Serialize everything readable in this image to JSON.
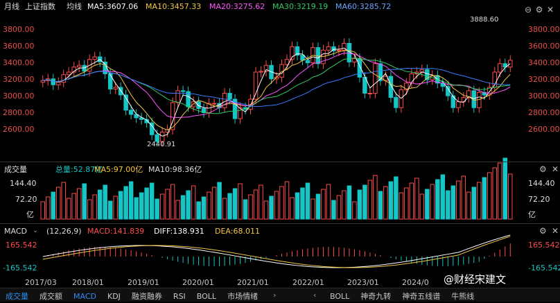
{
  "header": {
    "period": "月线",
    "index_name": "上证指数",
    "ma_toggle": "均线",
    "ma5": "MA5:3607.06",
    "ma10": "MA10:3457.33",
    "ma20": "MA20:3275.62",
    "ma30": "MA30:3219.19",
    "ma60": "MA60:3285.72"
  },
  "colors": {
    "up": "#ff4d4d",
    "down": "#16c5c5",
    "ma5": "#ffffff",
    "ma10": "#f5c842",
    "ma20": "#ff55ff",
    "ma30": "#33cc66",
    "ma60": "#3a7dff"
  },
  "price_axis": {
    "left": [
      "3800.00",
      "3600.00",
      "3400.00",
      "3200.00",
      "3000.00",
      "2800.00",
      "2600.00"
    ],
    "right": [
      "3800.00",
      "3600.00",
      "3400.00",
      "3200.00",
      "3000.00",
      "2800.00",
      "2600.00"
    ]
  },
  "annotations": {
    "high": "3888.60",
    "low": "2440.91"
  },
  "volume": {
    "title": "成交量",
    "total": "总量:52.87亿",
    "ma5": "MA5:97.00亿",
    "ma10": "MA10:98.36亿",
    "axis": [
      "144.40",
      "72.20",
      "亿"
    ],
    "axis_right": [
      "144.40",
      "72.20",
      "亿"
    ]
  },
  "macd": {
    "title": "MACD",
    "params": "(12,26,9)",
    "macd": "MACD:141.839",
    "diff": "DIFF:138.931",
    "dea": "DEA:68.011",
    "axis": [
      "165.542",
      "-165.542"
    ],
    "axis_right": [
      "165.542",
      "-165.542"
    ]
  },
  "x_axis": [
    "2017/03",
    "2018/01",
    "2019/01",
    "2020/01",
    "2021/01",
    "2022/01",
    "2023/01",
    "2024/0"
  ],
  "tabs": [
    "成交量",
    "成交额",
    "MACD",
    "KDJ",
    "融资融券",
    "RSI",
    "BOLL",
    "市场情绪"
  ],
  "tabs_right": [
    "BOLL",
    "神奇九转",
    "神奇五线谱",
    "牛熊线"
  ],
  "watermark": "@财经宋建文"
}
